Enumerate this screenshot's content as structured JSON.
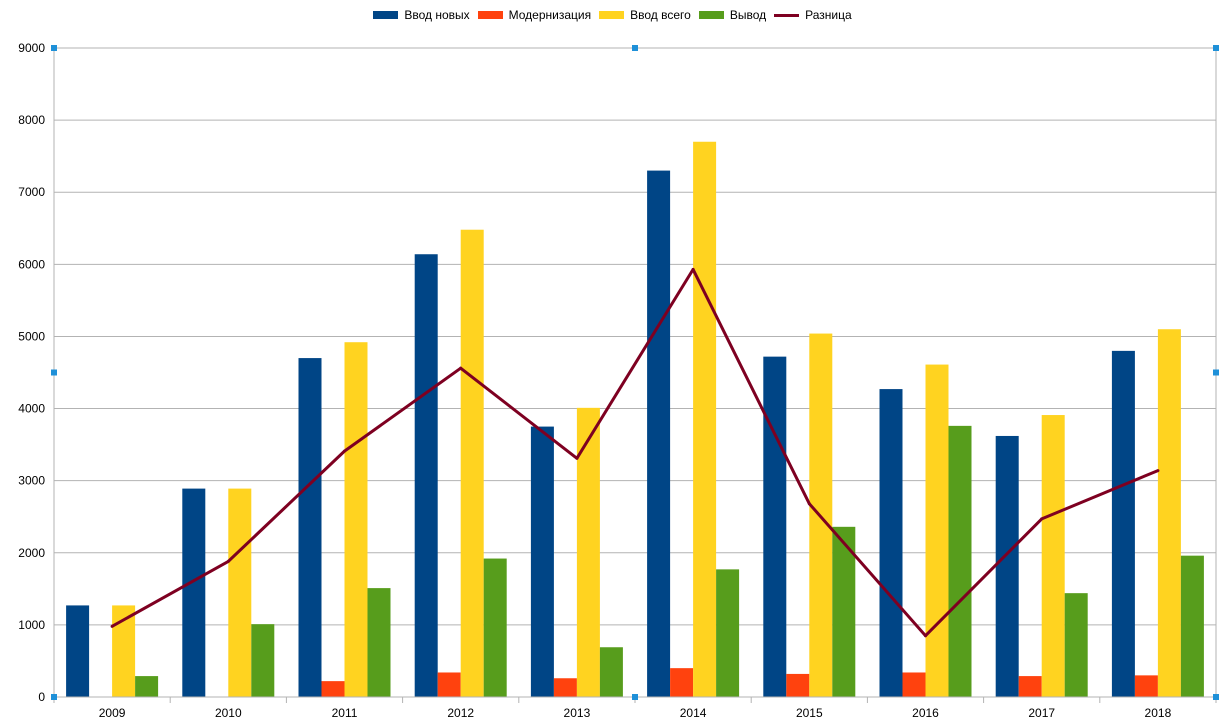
{
  "chart_data": {
    "type": "bar",
    "categories": [
      "2009",
      "2010",
      "2011",
      "2012",
      "2013",
      "2014",
      "2015",
      "2016",
      "2017",
      "2018"
    ],
    "series": [
      {
        "name": "Ввод новых",
        "type": "bar",
        "color": "#004586",
        "values": [
          1270,
          2890,
          4700,
          6140,
          3750,
          7300,
          4720,
          4270,
          3620,
          4800
        ]
      },
      {
        "name": "Модернизация",
        "type": "bar",
        "color": "#ff420e",
        "values": [
          0,
          0,
          220,
          340,
          260,
          400,
          320,
          340,
          290,
          300
        ]
      },
      {
        "name": "Ввод всего",
        "type": "bar",
        "color": "#ffd320",
        "values": [
          1270,
          2890,
          4920,
          6480,
          4010,
          7700,
          5040,
          4610,
          3910,
          5100
        ]
      },
      {
        "name": "Вывод",
        "type": "bar",
        "color": "#579d1c",
        "values": [
          290,
          1010,
          1510,
          1920,
          690,
          1770,
          2360,
          3760,
          1440,
          1960
        ]
      },
      {
        "name": "Разница",
        "type": "line",
        "color": "#7e0021",
        "values": [
          980,
          1880,
          3410,
          4560,
          3310,
          5930,
          2680,
          850,
          2470,
          3140
        ]
      }
    ],
    "ylim": [
      0,
      9000
    ],
    "yticks": [
      "0",
      "1000",
      "2000",
      "3000",
      "4000",
      "5000",
      "6000",
      "7000",
      "8000",
      "9000"
    ],
    "grid": true,
    "legend_position": "top"
  }
}
